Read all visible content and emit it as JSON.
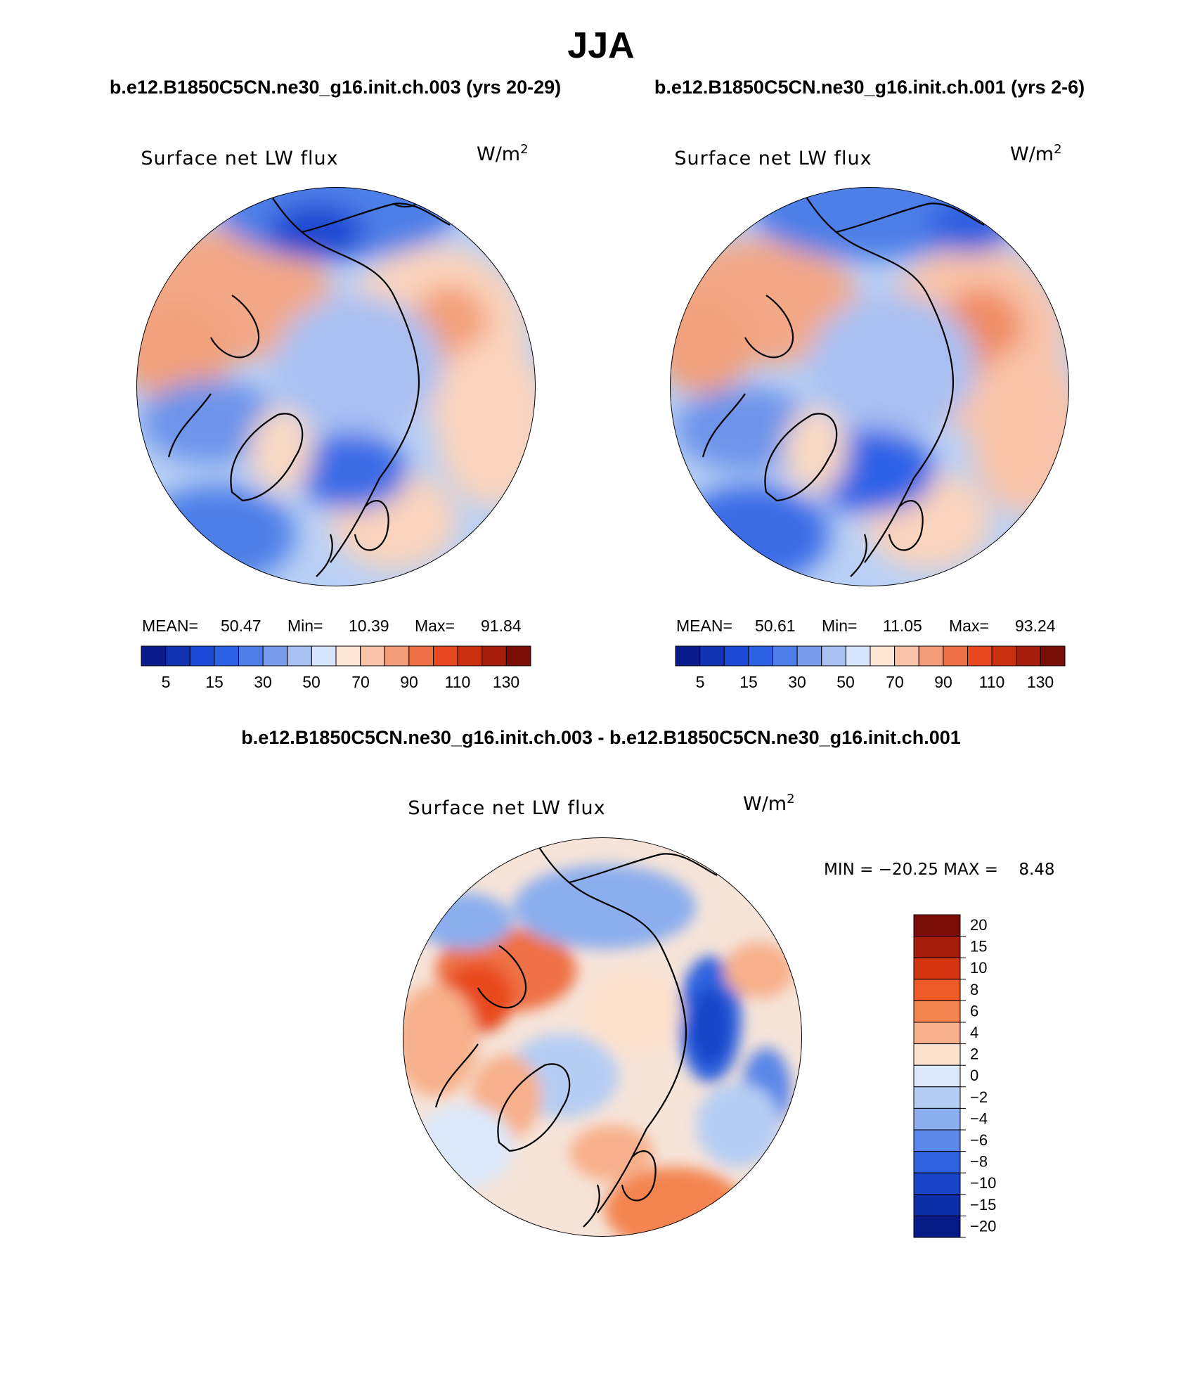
{
  "season": "JJA",
  "panels": [
    {
      "case_title": "b.e12.B1850C5CN.ne30_g16.init.ch.003 (yrs 20-29)",
      "field": "Surface net LW flux",
      "units_base": "W/m",
      "units_exp": "2",
      "stats": {
        "mean_label": "MEAN=",
        "mean": "50.47",
        "min_label": "Min=",
        "min": "10.39",
        "max_label": "Max=",
        "max": "91.84"
      }
    },
    {
      "case_title": "b.e12.B1850C5CN.ne30_g16.init.ch.001 (yrs 2-6)",
      "field": "Surface net LW flux",
      "units_base": "W/m",
      "units_exp": "2",
      "stats": {
        "mean_label": "MEAN=",
        "mean": "50.61",
        "min_label": "Min=",
        "min": "11.05",
        "max_label": "Max=",
        "max": "93.24"
      }
    }
  ],
  "abs_colorbar": {
    "colors": [
      "#0a1c8c",
      "#1232b4",
      "#1b49d6",
      "#2d62e6",
      "#4d7ee8",
      "#7a9cec",
      "#a9c0f2",
      "#d6e5fb",
      "#fce5d3",
      "#f8c3a9",
      "#f39c7a",
      "#ee7145",
      "#e8481f",
      "#c9300e",
      "#a71d0c",
      "#7a0d08"
    ],
    "tick_labels": [
      "5",
      "15",
      "30",
      "50",
      "70",
      "90",
      "110",
      "130"
    ]
  },
  "diff": {
    "title": "b.e12.B1850C5CN.ne30_g16.init.ch.003 - b.e12.B1850C5CN.ne30_g16.init.ch.001",
    "field": "Surface net LW flux",
    "units_base": "W/m",
    "units_exp": "2",
    "minmax_text": "MIN = −20.25 MAX =    8.48",
    "colorbar": {
      "colors": [
        "#7a0d08",
        "#a71d0c",
        "#d63512",
        "#ee5a28",
        "#f3844f",
        "#f7b08b",
        "#fce2cf",
        "#dce9fb",
        "#b6cdf3",
        "#8caeee",
        "#5b87e8",
        "#2f63df",
        "#1845c8",
        "#0c2ea8",
        "#061b86"
      ],
      "tick_labels": [
        "20",
        "15",
        "10",
        "8",
        "6",
        "4",
        "2",
        "0",
        "−2",
        "−4",
        "−6",
        "−8",
        "−10",
        "−15",
        "−20"
      ]
    }
  }
}
